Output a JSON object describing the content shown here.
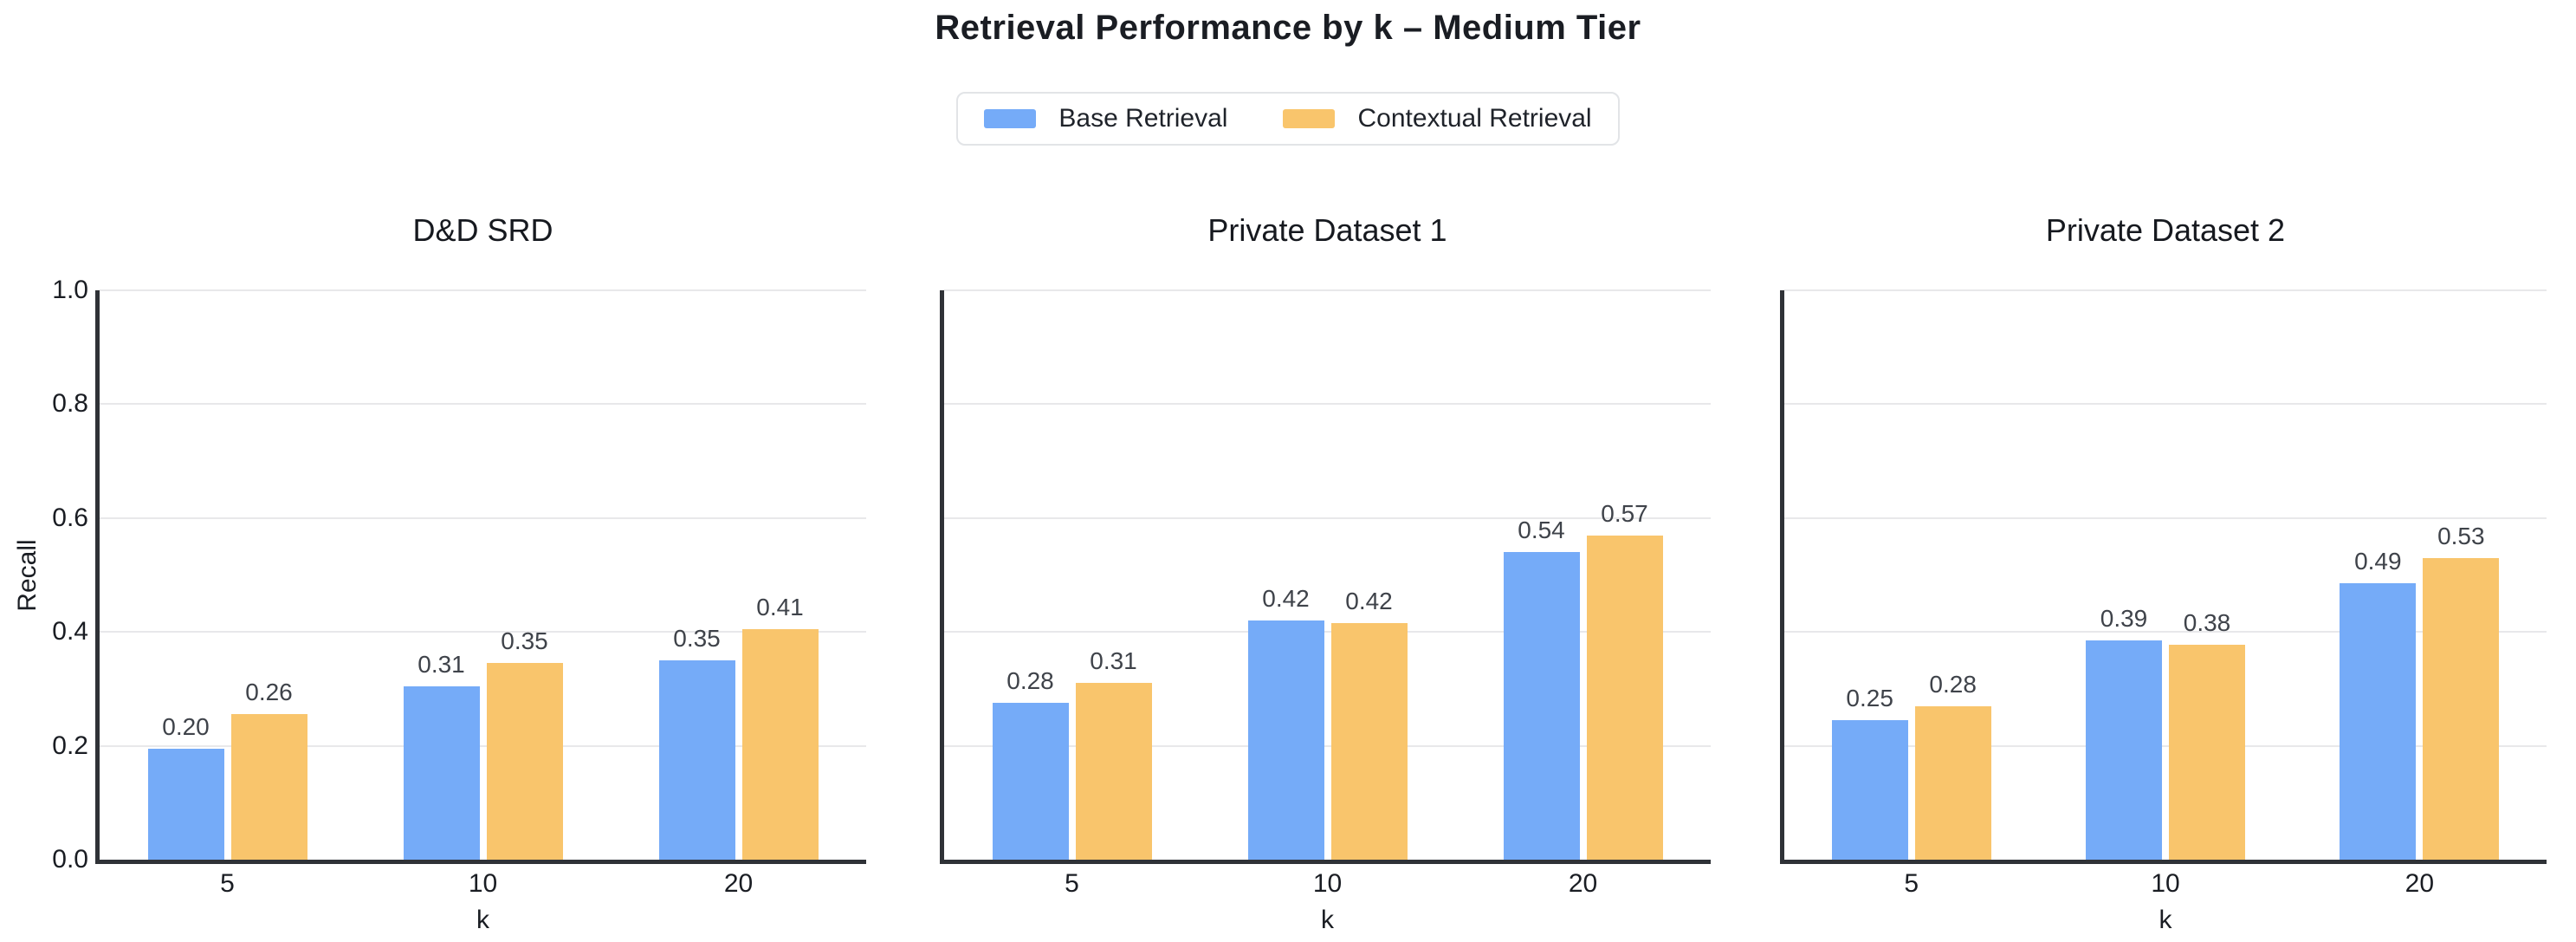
{
  "chart_data": {
    "type": "bar",
    "title": "Retrieval Performance by k – Medium Tier",
    "xlabel": "k",
    "ylabel": "Recall",
    "ylim": [
      0.0,
      1.0
    ],
    "yticks": [
      "0.0",
      "0.2",
      "0.4",
      "0.6",
      "0.8",
      "1.0"
    ],
    "categories": [
      "5",
      "10",
      "20"
    ],
    "grid": "horizontal",
    "legend": {
      "position": "top-center",
      "entries": [
        {
          "label": "Base Retrieval",
          "color": "#75abf8"
        },
        {
          "label": "Contextual Retrieval",
          "color": "#f9c56c"
        }
      ]
    },
    "colors": {
      "base": "#75abf8",
      "contextual": "#f9c56c",
      "gridline": "#e8e8ea",
      "spine": "#2f3237",
      "value_label": "#3f434a",
      "text": "#1a1d23"
    },
    "subplots": [
      {
        "title": "D&D SRD",
        "series": [
          {
            "name": "Base Retrieval",
            "values": [
              0.2,
              0.31,
              0.35
            ],
            "value_labels": [
              "0.20",
              "0.31",
              "0.35"
            ],
            "draw_heights": [
              0.195,
              0.305,
              0.35
            ]
          },
          {
            "name": "Contextual Retrieval",
            "values": [
              0.26,
              0.35,
              0.41
            ],
            "value_labels": [
              "0.26",
              "0.35",
              "0.41"
            ],
            "draw_heights": [
              0.255,
              0.345,
              0.405
            ]
          }
        ]
      },
      {
        "title": "Private Dataset 1",
        "series": [
          {
            "name": "Base Retrieval",
            "values": [
              0.28,
              0.42,
              0.54
            ],
            "value_labels": [
              "0.28",
              "0.42",
              "0.54"
            ],
            "draw_heights": [
              0.275,
              0.42,
              0.54
            ]
          },
          {
            "name": "Contextual Retrieval",
            "values": [
              0.31,
              0.42,
              0.57
            ],
            "value_labels": [
              "0.31",
              "0.42",
              "0.57"
            ],
            "draw_heights": [
              0.31,
              0.415,
              0.57
            ]
          }
        ]
      },
      {
        "title": "Private Dataset 2",
        "series": [
          {
            "name": "Base Retrieval",
            "values": [
              0.25,
              0.39,
              0.49
            ],
            "value_labels": [
              "0.25",
              "0.39",
              "0.49"
            ],
            "draw_heights": [
              0.245,
              0.385,
              0.485
            ]
          },
          {
            "name": "Contextual Retrieval",
            "values": [
              0.28,
              0.38,
              0.53
            ],
            "value_labels": [
              "0.28",
              "0.38",
              "0.53"
            ],
            "draw_heights": [
              0.27,
              0.378,
              0.53
            ]
          }
        ]
      }
    ]
  }
}
